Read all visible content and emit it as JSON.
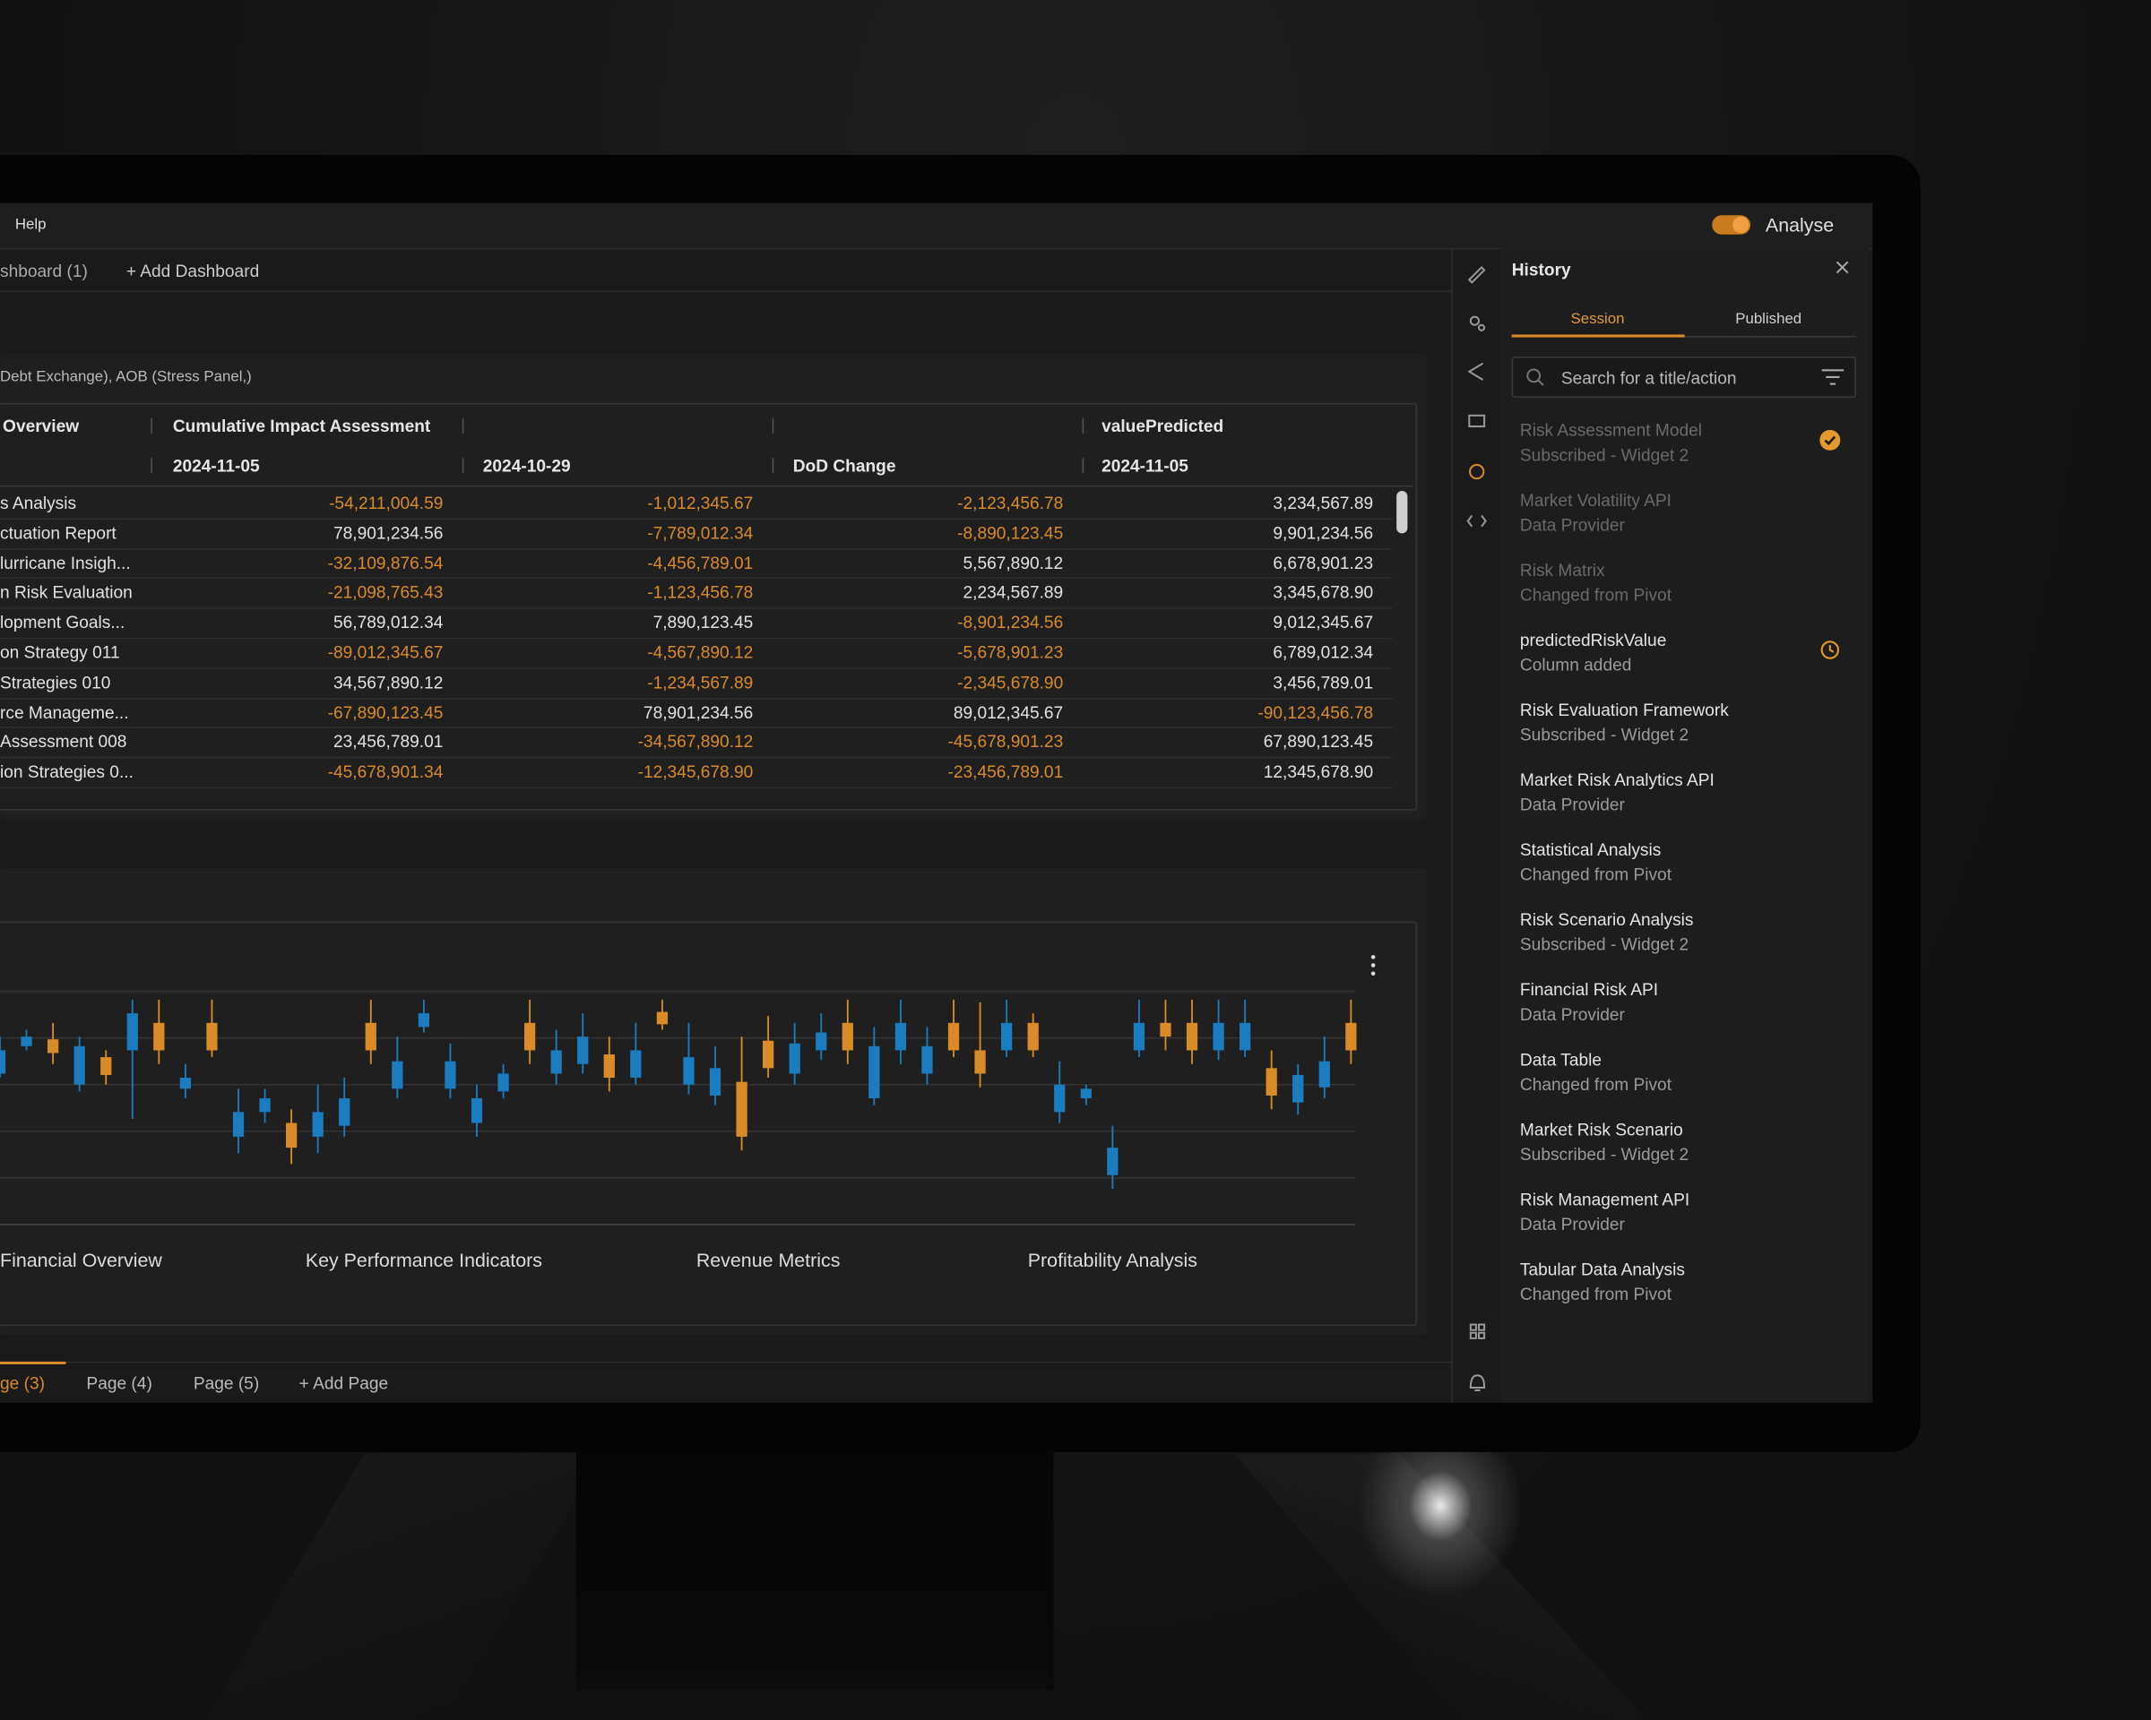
{
  "menu": {
    "help": "Help",
    "mode": "Analyse"
  },
  "dashboard_tabs": [
    "shboard (1)",
    "+ Add Dashboard"
  ],
  "table_widget": {
    "title": "Debt Exchange), AOB (Stress Panel,)",
    "columns": [
      {
        "group": "Overview"
      },
      {
        "group": "Cumulative Impact Assessment",
        "date": "2024-11-05"
      },
      {
        "date": "2024-10-29"
      },
      {
        "date": "DoD Change"
      },
      {
        "group": "valuePredicted",
        "date": "2024-11-05"
      }
    ],
    "negative_color": "#d98b2b",
    "rows": [
      [
        "s Analysis",
        "-54,211,004.59",
        "-1,012,345.67",
        "-2,123,456.78",
        "3,234,567.89"
      ],
      [
        "ctuation Report",
        "78,901,234.56",
        "-7,789,012.34",
        "-8,890,123.45",
        "9,901,234.56"
      ],
      [
        "lurricane Insigh...",
        "-32,109,876.54",
        "-4,456,789.01",
        "5,567,890.12",
        "6,678,901.23"
      ],
      [
        "n Risk Evaluation",
        "-21,098,765.43",
        "-1,123,456.78",
        "2,234,567.89",
        "3,345,678.90"
      ],
      [
        "lopment Goals...",
        "56,789,012.34",
        "7,890,123.45",
        "-8,901,234.56",
        "9,012,345.67"
      ],
      [
        "on Strategy 011",
        "-89,012,345.67",
        "-4,567,890.12",
        "-5,678,901.23",
        "6,789,012.34"
      ],
      [
        "Strategies 010",
        "34,567,890.12",
        "-1,234,567.89",
        "-2,345,678.90",
        "3,456,789.01"
      ],
      [
        "rce Manageme...",
        "-67,890,123.45",
        "78,901,234.56",
        "89,012,345.67",
        "-90,123,456.78"
      ],
      [
        "Assessment 008",
        "23,456,789.01",
        "-34,567,890.12",
        "-45,678,901.23",
        "67,890,123.45"
      ],
      [
        "ion Strategies 0...",
        "-45,678,901.34",
        "-12,345,678.90",
        "-23,456,789.01",
        "12,345,678.90"
      ]
    ]
  },
  "chart_data": {
    "type": "candlestick",
    "categories": [
      null,
      null,
      null,
      "Financial Overview",
      null,
      null,
      null,
      null,
      null,
      null,
      null,
      null,
      null,
      null,
      null,
      null,
      "Key Performance Indicators",
      null,
      null,
      null,
      null,
      null,
      null,
      null,
      null,
      null,
      null,
      null,
      null,
      "Revenue Metrics",
      null,
      null,
      null,
      null,
      null,
      null,
      null,
      null,
      null,
      null,
      null,
      null,
      "Profitability Analysis",
      null,
      null,
      null,
      null,
      null,
      null,
      null,
      null,
      null
    ],
    "open": [
      118,
      138,
      143,
      110,
      130,
      135,
      155,
      107,
      155,
      72,
      90,
      82,
      72,
      80,
      155,
      107,
      152,
      107,
      82,
      105,
      155,
      118,
      125,
      132,
      115,
      163,
      110,
      102,
      112,
      142,
      118,
      135,
      155,
      100,
      135,
      118,
      155,
      135,
      135,
      155,
      90,
      100,
      44,
      135,
      155,
      155,
      135,
      135,
      122,
      97,
      108,
      155
    ],
    "high": [
      145,
      150,
      155,
      145,
      135,
      172,
      172,
      125,
      172,
      107,
      107,
      92,
      110,
      115,
      172,
      145,
      172,
      140,
      110,
      125,
      172,
      150,
      162,
      145,
      155,
      172,
      155,
      138,
      145,
      160,
      155,
      162,
      172,
      152,
      172,
      152,
      172,
      170,
      172,
      162,
      127,
      110,
      80,
      172,
      172,
      172,
      172,
      172,
      135,
      125,
      145,
      172
    ],
    "low": [
      115,
      135,
      125,
      105,
      110,
      85,
      125,
      100,
      130,
      60,
      82,
      52,
      60,
      72,
      125,
      100,
      148,
      100,
      72,
      100,
      125,
      110,
      118,
      105,
      110,
      150,
      103,
      95,
      62,
      115,
      110,
      128,
      125,
      95,
      125,
      110,
      130,
      108,
      130,
      130,
      82,
      95,
      34,
      130,
      135,
      125,
      128,
      130,
      92,
      88,
      100,
      125
    ],
    "close": [
      135,
      145,
      133,
      138,
      117,
      162,
      135,
      115,
      135,
      90,
      100,
      64,
      90,
      100,
      135,
      127,
      162,
      127,
      100,
      118,
      135,
      135,
      145,
      115,
      135,
      154,
      130,
      122,
      72,
      122,
      140,
      148,
      135,
      138,
      155,
      138,
      135,
      118,
      155,
      135,
      110,
      107,
      64,
      155,
      145,
      135,
      155,
      155,
      102,
      117,
      127,
      135
    ],
    "up_color": "#1b7cc0",
    "down_color": "#d98b27",
    "ylim": [
      8,
      178
    ],
    "grid": true
  },
  "page_tabs": [
    "ge (3)",
    "Page (4)",
    "Page (5)",
    "+ Add Page"
  ],
  "history": {
    "title": "History",
    "tabs": [
      "Session",
      "Published"
    ],
    "search_placeholder": "Search for a title/action",
    "items": [
      {
        "title": "Risk Assessment Model",
        "subtitle": "Subscribed - Widget 2",
        "dimmed": true,
        "icon": "check"
      },
      {
        "title": "Market Volatility API",
        "subtitle": "Data Provider",
        "dimmed": true
      },
      {
        "title": "Risk Matrix",
        "subtitle": "Changed from Pivot",
        "dimmed": true
      },
      {
        "title": "predictedRiskValue",
        "subtitle": "Column added",
        "icon": "history"
      },
      {
        "title": "Risk Evaluation Framework",
        "subtitle": "Subscribed - Widget 2"
      },
      {
        "title": "Market Risk Analytics API",
        "subtitle": "Data Provider"
      },
      {
        "title": "Statistical Analysis",
        "subtitle": "Changed from Pivot"
      },
      {
        "title": "Risk Scenario Analysis",
        "subtitle": "Subscribed - Widget 2"
      },
      {
        "title": "Financial Risk API",
        "subtitle": "Data Provider"
      },
      {
        "title": "Data Table",
        "subtitle": "Changed from Pivot"
      },
      {
        "title": "Market Risk Scenario",
        "subtitle": "Subscribed - Widget 2"
      },
      {
        "title": "Risk Management API",
        "subtitle": "Data Provider"
      },
      {
        "title": "Tabular Data Analysis",
        "subtitle": "Changed from Pivot"
      }
    ]
  }
}
